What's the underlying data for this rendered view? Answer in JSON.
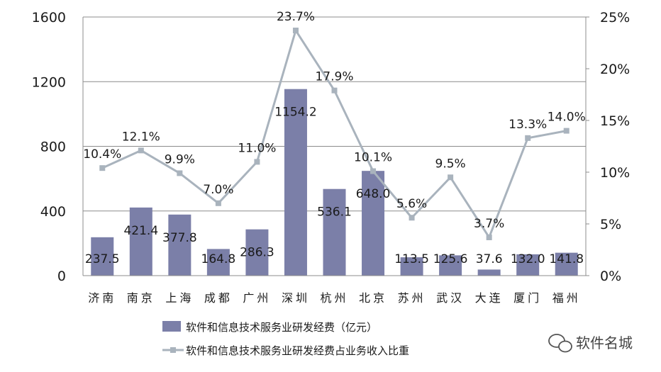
{
  "chart_data": {
    "type": "bar",
    "categories": [
      "济南",
      "南京",
      "上海",
      "成都",
      "广州",
      "深圳",
      "杭州",
      "北京",
      "苏州",
      "武汉",
      "大连",
      "厦门",
      "福州"
    ],
    "series": [
      {
        "name": "软件和信息技术服务业研发经费（亿元）",
        "type": "bar",
        "axis": "left",
        "color": "#7b7fa8",
        "values": [
          237.5,
          421.4,
          377.8,
          164.8,
          286.3,
          1154.2,
          536.1,
          648.0,
          113.5,
          125.6,
          37.6,
          132.0,
          141.8
        ],
        "labels": [
          "237.5",
          "421.4",
          "377.8",
          "164.8",
          "286.3",
          "1154.2",
          "536.1",
          "648.0",
          "113.5",
          "125.6",
          "37.6",
          "132.0",
          "141.8"
        ]
      },
      {
        "name": "软件和信息技术服务业研发经费占业务收入比重",
        "type": "line",
        "axis": "right",
        "color": "#a9b3bd",
        "values": [
          10.4,
          12.1,
          9.9,
          7.0,
          11.0,
          23.7,
          17.9,
          10.1,
          5.6,
          9.5,
          3.7,
          13.3,
          14.0
        ],
        "labels": [
          "10.4%",
          "12.1%",
          "9.9%",
          "7.0%",
          "11.0%",
          "23.7%",
          "17.9%",
          "10.1%",
          "5.6%",
          "9.5%",
          "3.7%",
          "13.3%",
          "14.0%"
        ]
      }
    ],
    "y_left": {
      "min": 0,
      "max": 1600,
      "ticks": [
        "0",
        "400",
        "800",
        "1200",
        "1600"
      ]
    },
    "y_right": {
      "min": 0,
      "max": 25,
      "ticks": [
        "0%",
        "5%",
        "10%",
        "15%",
        "20%",
        "25%"
      ]
    },
    "grid": true,
    "legend_position": "bottom"
  },
  "watermark": {
    "text": "软件名城",
    "icon": "wechat-icon"
  }
}
